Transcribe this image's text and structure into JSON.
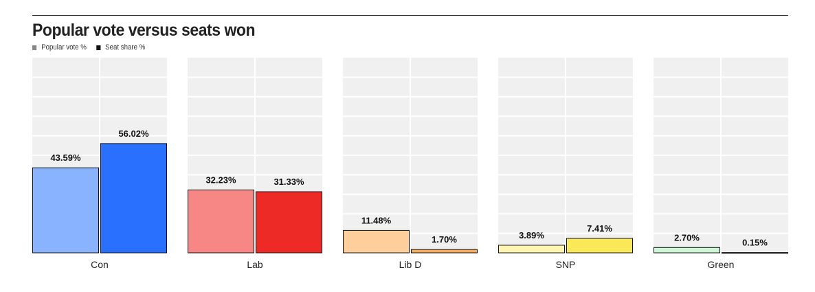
{
  "chart_data": {
    "type": "bar",
    "title": "Popular vote versus seats won",
    "categories": [
      "Con",
      "Lab",
      "Lib D",
      "SNP",
      "Green"
    ],
    "series": [
      {
        "name": "Popular vote %",
        "values": [
          43.59,
          32.23,
          11.48,
          3.89,
          2.7
        ],
        "labels": [
          "43.59%",
          "32.23%",
          "11.48%",
          "3.89%",
          "2.70%"
        ]
      },
      {
        "name": "Seat share %",
        "values": [
          56.02,
          31.33,
          1.7,
          7.41,
          0.15
        ],
        "labels": [
          "56.02%",
          "31.33%",
          "1.70%",
          "7.41%",
          "0.15%"
        ]
      }
    ],
    "colors": {
      "popular_vote": [
        "#8ab3ff",
        "#f68785",
        "#fecf9a",
        "#fff4b0",
        "#cdf6d7"
      ],
      "seat_share": [
        "#2a70ff",
        "#ee2a27",
        "#f7ab5d",
        "#fbe858",
        "#3aa957"
      ]
    },
    "legend_colors": {
      "popular_vote": "#888888",
      "seat_share": "#111111"
    },
    "ylim": [
      0,
      100
    ],
    "grid": true,
    "legend_position": "top-left"
  }
}
